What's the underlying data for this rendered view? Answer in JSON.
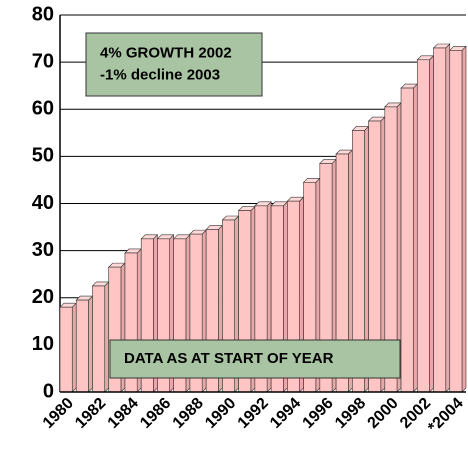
{
  "chart_data": {
    "type": "bar",
    "categories": [
      "1980",
      null,
      "1982",
      null,
      "1984",
      null,
      "1986",
      null,
      "1988",
      null,
      "1990",
      null,
      "1992",
      null,
      "1994",
      null,
      "1996",
      null,
      "1998",
      null,
      "2000",
      null,
      "2002",
      null,
      "*2004"
    ],
    "values": [
      18,
      19.5,
      22.5,
      26.5,
      29.5,
      32.5,
      32.5,
      32.5,
      33.5,
      34.5,
      36.5,
      38.5,
      39.5,
      39.5,
      40.5,
      44.5,
      48.5,
      50.5,
      55.5,
      57.5,
      60.5,
      64.5,
      70.5,
      73,
      72.5
    ],
    "color": "#ffc4c4",
    "ylim": [
      0,
      80
    ],
    "yticks": [
      0,
      10,
      20,
      30,
      40,
      50,
      60,
      70,
      80
    ],
    "grid": true,
    "annotations": [
      {
        "lines": [
          "4% GROWTH 2002",
          "-1% decline 2003"
        ]
      },
      {
        "lines": [
          "DATA AS AT START OF YEAR"
        ]
      }
    ]
  }
}
